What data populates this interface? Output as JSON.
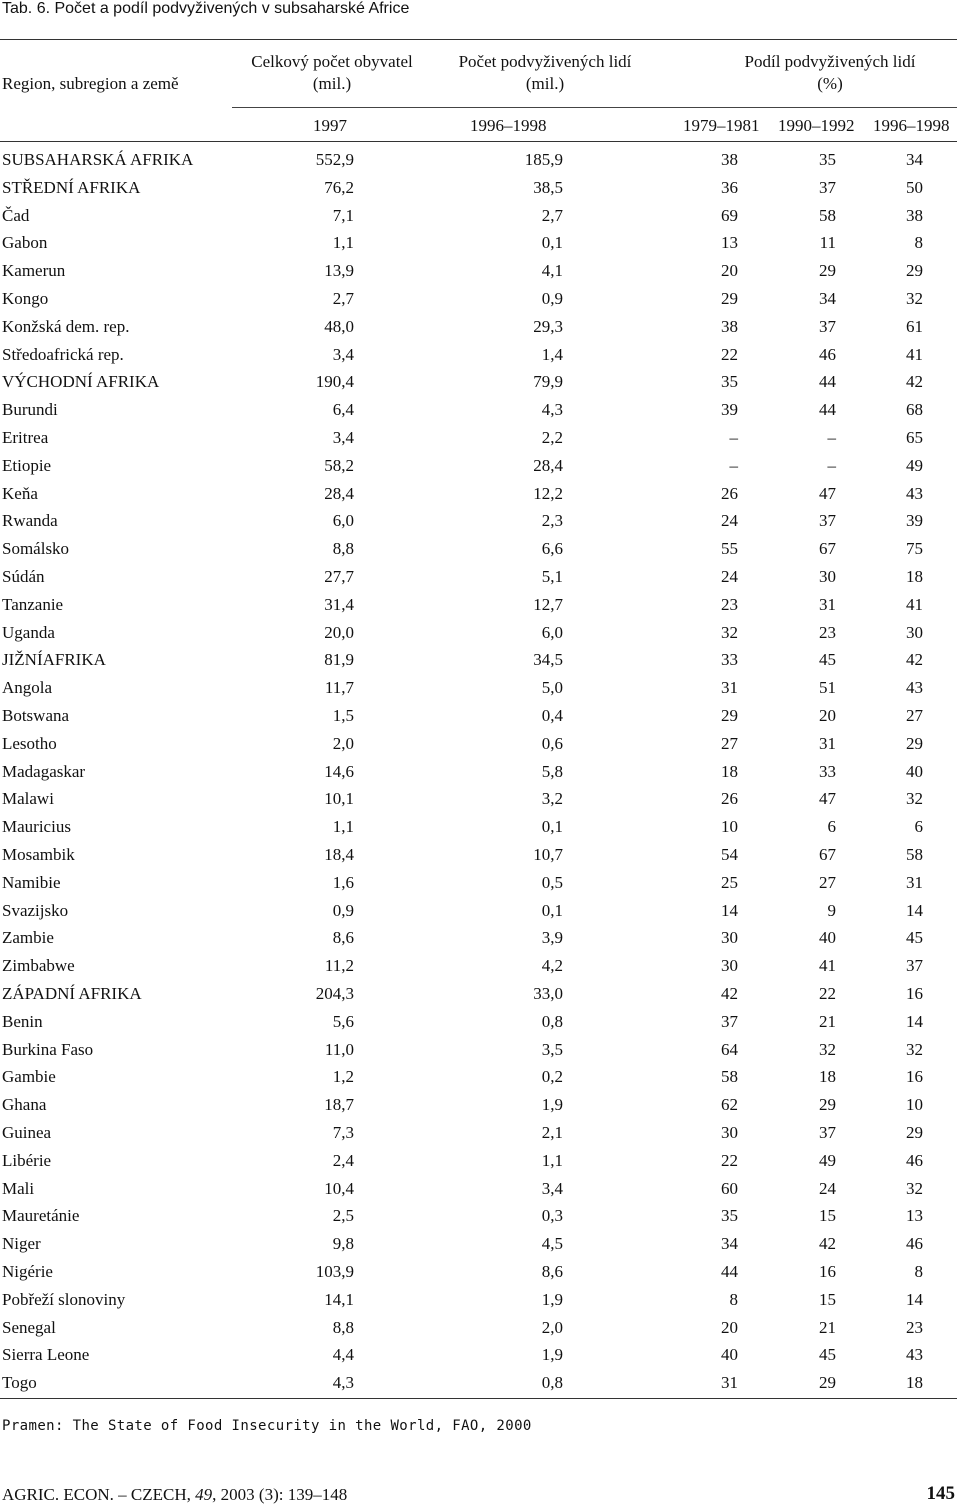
{
  "caption": "Tab. 6. Počet a podíl podvyživených v subsaharské Africe",
  "headers": {
    "region": "Region, subregion a země",
    "pop_line1": "Celkový počet obyvatel",
    "pop_line2": "(mil.)",
    "und_line1": "Počet podvyživených lidí",
    "und_line2": "(mil.)",
    "share_line1": "Podíl podvyživených lidí",
    "share_line2": "(%)",
    "year_pop": "1997",
    "year_und": "1996–1998",
    "year_p1": "1979–1981",
    "year_p2": "1990–1992",
    "year_p3": "1996–1998"
  },
  "rows": [
    {
      "name": "SUBSAHARSKÁ  AFRIKA",
      "pop": "552,9",
      "und": "185,9",
      "p1": "38",
      "p2": "35",
      "p3": "34"
    },
    {
      "name": "STŘEDNÍ AFRIKA",
      "pop": "76,2",
      "und": "38,5",
      "p1": "36",
      "p2": "37",
      "p3": "50"
    },
    {
      "name": "Čad",
      "pop": "7,1",
      "und": "2,7",
      "p1": "69",
      "p2": "58",
      "p3": "38"
    },
    {
      "name": "Gabon",
      "pop": "1,1",
      "und": "0,1",
      "p1": "13",
      "p2": "11",
      "p3": "8"
    },
    {
      "name": "Kamerun",
      "pop": "13,9",
      "und": "4,1",
      "p1": "20",
      "p2": "29",
      "p3": "29"
    },
    {
      "name": "Kongo",
      "pop": "2,7",
      "und": "0,9",
      "p1": "29",
      "p2": "34",
      "p3": "32"
    },
    {
      "name": "Konžská dem. rep.",
      "pop": "48,0",
      "und": "29,3",
      "p1": "38",
      "p2": "37",
      "p3": "61"
    },
    {
      "name": "Středoafrická rep.",
      "pop": "3,4",
      "und": "1,4",
      "p1": "22",
      "p2": "46",
      "p3": "41"
    },
    {
      "name": "VÝCHODNÍ AFRIKA",
      "pop": "190,4",
      "und": "79,9",
      "p1": "35",
      "p2": "44",
      "p3": "42"
    },
    {
      "name": "Burundi",
      "pop": "6,4",
      "und": "4,3",
      "p1": "39",
      "p2": "44",
      "p3": "68"
    },
    {
      "name": "Eritrea",
      "pop": "3,4",
      "und": "2,2",
      "p1": "–",
      "p2": "–",
      "p3": "65"
    },
    {
      "name": "Etiopie",
      "pop": "58,2",
      "und": "28,4",
      "p1": "–",
      "p2": "–",
      "p3": "49"
    },
    {
      "name": "Keňa",
      "pop": "28,4",
      "und": "12,2",
      "p1": "26",
      "p2": "47",
      "p3": "43"
    },
    {
      "name": "Rwanda",
      "pop": "6,0",
      "und": "2,3",
      "p1": "24",
      "p2": "37",
      "p3": "39"
    },
    {
      "name": "Somálsko",
      "pop": "8,8",
      "und": "6,6",
      "p1": "55",
      "p2": "67",
      "p3": "75"
    },
    {
      "name": "Súdán",
      "pop": "27,7",
      "und": "5,1",
      "p1": "24",
      "p2": "30",
      "p3": "18"
    },
    {
      "name": "Tanzanie",
      "pop": "31,4",
      "und": "12,7",
      "p1": "23",
      "p2": "31",
      "p3": "41"
    },
    {
      "name": "Uganda",
      "pop": "20,0",
      "und": "6,0",
      "p1": "32",
      "p2": "23",
      "p3": "30"
    },
    {
      "name": "JIŽNÍAFRIKA",
      "pop": "81,9",
      "und": "34,5",
      "p1": "33",
      "p2": "45",
      "p3": "42"
    },
    {
      "name": "Angola",
      "pop": "11,7",
      "und": "5,0",
      "p1": "31",
      "p2": "51",
      "p3": "43"
    },
    {
      "name": "Botswana",
      "pop": "1,5",
      "und": "0,4",
      "p1": "29",
      "p2": "20",
      "p3": "27"
    },
    {
      "name": "Lesotho",
      "pop": "2,0",
      "und": "0,6",
      "p1": "27",
      "p2": "31",
      "p3": "29"
    },
    {
      "name": "Madagaskar",
      "pop": "14,6",
      "und": "5,8",
      "p1": "18",
      "p2": "33",
      "p3": "40"
    },
    {
      "name": "Malawi",
      "pop": "10,1",
      "und": "3,2",
      "p1": "26",
      "p2": "47",
      "p3": "32"
    },
    {
      "name": "Mauricius",
      "pop": "1,1",
      "und": "0,1",
      "p1": "10",
      "p2": "6",
      "p3": "6"
    },
    {
      "name": "Mosambik",
      "pop": "18,4",
      "und": "10,7",
      "p1": "54",
      "p2": "67",
      "p3": "58"
    },
    {
      "name": "Namibie",
      "pop": "1,6",
      "und": "0,5",
      "p1": "25",
      "p2": "27",
      "p3": "31"
    },
    {
      "name": "Svazijsko",
      "pop": "0,9",
      "und": "0,1",
      "p1": "14",
      "p2": "9",
      "p3": "14"
    },
    {
      "name": "Zambie",
      "pop": "8,6",
      "und": "3,9",
      "p1": "30",
      "p2": "40",
      "p3": "45"
    },
    {
      "name": "Zimbabwe",
      "pop": "11,2",
      "und": "4,2",
      "p1": "30",
      "p2": "41",
      "p3": "37"
    },
    {
      "name": "ZÁPADNÍ AFRIKA",
      "pop": "204,3",
      "und": "33,0",
      "p1": "42",
      "p2": "22",
      "p3": "16"
    },
    {
      "name": "Benin",
      "pop": "5,6",
      "und": "0,8",
      "p1": "37",
      "p2": "21",
      "p3": "14"
    },
    {
      "name": "Burkina Faso",
      "pop": "11,0",
      "und": "3,5",
      "p1": "64",
      "p2": "32",
      "p3": "32"
    },
    {
      "name": "Gambie",
      "pop": "1,2",
      "und": "0,2",
      "p1": "58",
      "p2": "18",
      "p3": "16"
    },
    {
      "name": "Ghana",
      "pop": "18,7",
      "und": "1,9",
      "p1": "62",
      "p2": "29",
      "p3": "10"
    },
    {
      "name": "Guinea",
      "pop": "7,3",
      "und": "2,1",
      "p1": "30",
      "p2": "37",
      "p3": "29"
    },
    {
      "name": "Libérie",
      "pop": "2,4",
      "und": "1,1",
      "p1": "22",
      "p2": "49",
      "p3": "46"
    },
    {
      "name": "Mali",
      "pop": "10,4",
      "und": "3,4",
      "p1": "60",
      "p2": "24",
      "p3": "32"
    },
    {
      "name": "Mauretánie",
      "pop": "2,5",
      "und": "0,3",
      "p1": "35",
      "p2": "15",
      "p3": "13"
    },
    {
      "name": "Niger",
      "pop": "9,8",
      "und": "4,5",
      "p1": "34",
      "p2": "42",
      "p3": "46"
    },
    {
      "name": "Nigérie",
      "pop": "103,9",
      "und": "8,6",
      "p1": "44",
      "p2": "16",
      "p3": "8"
    },
    {
      "name": "Pobřeží slonoviny",
      "pop": "14,1",
      "und": "1,9",
      "p1": "8",
      "p2": "15",
      "p3": "14"
    },
    {
      "name": "Senegal",
      "pop": "8,8",
      "und": "2,0",
      "p1": "20",
      "p2": "21",
      "p3": "23"
    },
    {
      "name": "Sierra Leone",
      "pop": "4,4",
      "und": "1,9",
      "p1": "40",
      "p2": "45",
      "p3": "43"
    },
    {
      "name": "Togo",
      "pop": "4,3",
      "und": "0,8",
      "p1": "31",
      "p2": "29",
      "p3": "18"
    }
  ],
  "source": "Pramen: The State of Food Insecurity in the World, FAO, 2000",
  "footer": {
    "journal": "AGRIC. ECON. – CZECH, ",
    "volume": "49",
    "issue": ", 2003 (3): 139–148",
    "page": "145"
  }
}
